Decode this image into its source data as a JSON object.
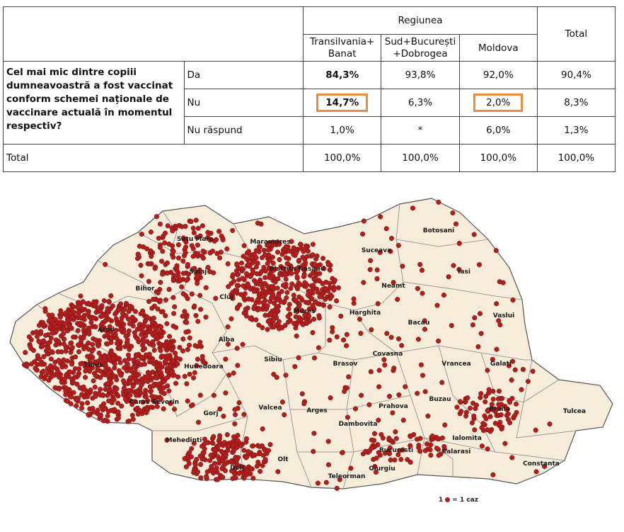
{
  "table": {
    "header_group": "Regiunea",
    "total_header": "Total",
    "columns": [
      "Transilvania+\nBanat",
      "Sud+București\n+Dobrogea",
      "Moldova"
    ],
    "question": "Cel mai mic dintre copiii dumneavoastră a fost vaccinat conform schemei naționale de vaccinare actuală în momentul respectiv?",
    "rows": [
      {
        "label": "Da",
        "values": [
          "84,3%",
          "93,8%",
          "92,0%",
          "90,4%"
        ]
      },
      {
        "label": "Nu",
        "values": [
          "14,7%",
          "6,3%",
          "2,0%",
          "8,3%"
        ]
      },
      {
        "label": "Nu răspund",
        "values": [
          "1,0%",
          "*",
          "6,0%",
          "1,3%"
        ]
      }
    ],
    "total_row": {
      "label": "Total",
      "values": [
        "100,0%",
        "100,0%",
        "100,0%",
        "100,0%"
      ]
    },
    "highlight_color": "#ef8a3a"
  },
  "map": {
    "fill_color": "#f5ecd9",
    "dot_color": "#b01e1e",
    "labels": [
      "Satu Mare",
      "Maramures",
      "Suceava",
      "Botosani",
      "Salaj",
      "Bistrita Nasaud",
      "Iasi",
      "Bihor",
      "Cluj",
      "Neamt",
      "Mures",
      "Harghita",
      "Bacau",
      "Vaslui",
      "Arad",
      "Alba",
      "Sibiu",
      "Covasna",
      "Vrancea",
      "Galati",
      "Timis",
      "Hunedoara",
      "Brasov",
      "Caras Severin",
      "Gorj",
      "Valcea",
      "Arges",
      "Prahova",
      "Buzau",
      "Braila",
      "Tulcea",
      "Mehedinti",
      "Dambovita",
      "Ialomita",
      "Dolj",
      "Olt",
      "Bucuresti",
      "Calarasi",
      "Constanta",
      "Giurgiu",
      "Teleorman"
    ]
  },
  "legend": {
    "left": "1",
    "right": "= 1 caz"
  }
}
